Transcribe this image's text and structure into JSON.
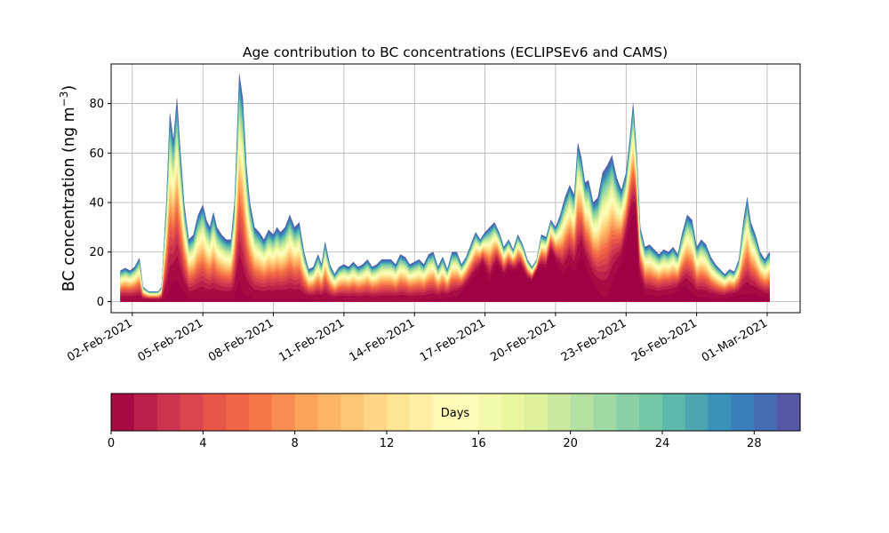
{
  "chart_data": {
    "type": "area",
    "stacked": true,
    "title": "Age contribution to BC concentrations (ECLIPSEv6 and CAMS)",
    "ylabel_main": "BC concentration (ng m",
    "ylabel_sup": "−3",
    "ylabel_close": ")",
    "xlabel": "",
    "xlim": [
      -0.9,
      28.4
    ],
    "ylim": [
      -4.5,
      96
    ],
    "grid": true,
    "x_tick_positions": [
      0,
      3,
      6,
      9,
      12,
      15,
      18,
      21,
      24,
      27
    ],
    "x_tick_labels": [
      "02-Feb-2021",
      "05-Feb-2021",
      "08-Feb-2021",
      "11-Feb-2021",
      "14-Feb-2021",
      "17-Feb-2021",
      "20-Feb-2021",
      "23-Feb-2021",
      "26-Feb-2021",
      "01-Mar-2021"
    ],
    "y_ticks": [
      0,
      20,
      40,
      60,
      80
    ],
    "x_unit": "days since 02-Feb-2021",
    "total_series": [
      [
        -0.5,
        12.5
      ],
      [
        -0.3,
        13.5
      ],
      [
        -0.1,
        12.5
      ],
      [
        0.1,
        14
      ],
      [
        0.3,
        17.5
      ],
      [
        0.45,
        6
      ],
      [
        0.7,
        4
      ],
      [
        1.1,
        4
      ],
      [
        1.25,
        6
      ],
      [
        1.45,
        40
      ],
      [
        1.6,
        76
      ],
      [
        1.75,
        65
      ],
      [
        1.9,
        82
      ],
      [
        2.05,
        60
      ],
      [
        2.2,
        40
      ],
      [
        2.4,
        25
      ],
      [
        2.6,
        27
      ],
      [
        2.8,
        35
      ],
      [
        3.0,
        39
      ],
      [
        3.15,
        33
      ],
      [
        3.3,
        30
      ],
      [
        3.45,
        36
      ],
      [
        3.6,
        30
      ],
      [
        3.8,
        27
      ],
      [
        4.0,
        25
      ],
      [
        4.2,
        25
      ],
      [
        4.35,
        40
      ],
      [
        4.45,
        65
      ],
      [
        4.55,
        92
      ],
      [
        4.7,
        82
      ],
      [
        4.85,
        55
      ],
      [
        5.0,
        40
      ],
      [
        5.2,
        30
      ],
      [
        5.4,
        28
      ],
      [
        5.6,
        25
      ],
      [
        5.8,
        29
      ],
      [
        6.0,
        27
      ],
      [
        6.15,
        30
      ],
      [
        6.3,
        28
      ],
      [
        6.5,
        30
      ],
      [
        6.7,
        35
      ],
      [
        6.9,
        30
      ],
      [
        7.1,
        32
      ],
      [
        7.3,
        20
      ],
      [
        7.5,
        13
      ],
      [
        7.7,
        14
      ],
      [
        7.9,
        19
      ],
      [
        8.05,
        15
      ],
      [
        8.2,
        24
      ],
      [
        8.4,
        15
      ],
      [
        8.6,
        11
      ],
      [
        8.8,
        14
      ],
      [
        9.0,
        15
      ],
      [
        9.2,
        14
      ],
      [
        9.4,
        16
      ],
      [
        9.6,
        14
      ],
      [
        9.8,
        15
      ],
      [
        10.0,
        17
      ],
      [
        10.2,
        14
      ],
      [
        10.4,
        15
      ],
      [
        10.6,
        17
      ],
      [
        10.8,
        17
      ],
      [
        11.0,
        17
      ],
      [
        11.2,
        15
      ],
      [
        11.4,
        19
      ],
      [
        11.6,
        18
      ],
      [
        11.8,
        15
      ],
      [
        12.0,
        16
      ],
      [
        12.2,
        17
      ],
      [
        12.4,
        15
      ],
      [
        12.6,
        19
      ],
      [
        12.8,
        20
      ],
      [
        13.0,
        14
      ],
      [
        13.2,
        18
      ],
      [
        13.4,
        13
      ],
      [
        13.6,
        20
      ],
      [
        13.8,
        20
      ],
      [
        14.0,
        15
      ],
      [
        14.2,
        18
      ],
      [
        14.4,
        23
      ],
      [
        14.6,
        28
      ],
      [
        14.8,
        25
      ],
      [
        15.0,
        28
      ],
      [
        15.2,
        30
      ],
      [
        15.4,
        32
      ],
      [
        15.6,
        28
      ],
      [
        15.8,
        22
      ],
      [
        16.0,
        25
      ],
      [
        16.2,
        21
      ],
      [
        16.4,
        27
      ],
      [
        16.6,
        23
      ],
      [
        16.8,
        17
      ],
      [
        17.0,
        14
      ],
      [
        17.2,
        17
      ],
      [
        17.4,
        27
      ],
      [
        17.6,
        26
      ],
      [
        17.8,
        33
      ],
      [
        18.0,
        30
      ],
      [
        18.2,
        35
      ],
      [
        18.4,
        42
      ],
      [
        18.6,
        47
      ],
      [
        18.8,
        43
      ],
      [
        18.95,
        64
      ],
      [
        19.1,
        58
      ],
      [
        19.25,
        48
      ],
      [
        19.4,
        49
      ],
      [
        19.6,
        40
      ],
      [
        19.8,
        42
      ],
      [
        20.0,
        52
      ],
      [
        20.2,
        55
      ],
      [
        20.4,
        59
      ],
      [
        20.6,
        50
      ],
      [
        20.8,
        45
      ],
      [
        21.0,
        52
      ],
      [
        21.15,
        65
      ],
      [
        21.3,
        80
      ],
      [
        21.45,
        60
      ],
      [
        21.6,
        30
      ],
      [
        21.8,
        22
      ],
      [
        22.0,
        23
      ],
      [
        22.2,
        21
      ],
      [
        22.4,
        19
      ],
      [
        22.6,
        21
      ],
      [
        22.8,
        20
      ],
      [
        23.0,
        22
      ],
      [
        23.2,
        19
      ],
      [
        23.4,
        28
      ],
      [
        23.6,
        35
      ],
      [
        23.8,
        33
      ],
      [
        24.0,
        22
      ],
      [
        24.2,
        25
      ],
      [
        24.4,
        23
      ],
      [
        24.6,
        18
      ],
      [
        24.8,
        15
      ],
      [
        25.0,
        13
      ],
      [
        25.2,
        11
      ],
      [
        25.4,
        13
      ],
      [
        25.6,
        12
      ],
      [
        25.8,
        17
      ],
      [
        26.0,
        33
      ],
      [
        26.15,
        42
      ],
      [
        26.3,
        32
      ],
      [
        26.5,
        27
      ],
      [
        26.7,
        20
      ],
      [
        26.9,
        17
      ],
      [
        27.1,
        20
      ]
    ],
    "fresh_component_series": [
      [
        -0.5,
        0.5
      ],
      [
        0.5,
        0.5
      ],
      [
        1.3,
        0.5
      ],
      [
        1.5,
        3
      ],
      [
        1.75,
        8
      ],
      [
        1.9,
        9
      ],
      [
        2.1,
        5
      ],
      [
        2.4,
        1
      ],
      [
        3.0,
        1
      ],
      [
        4.3,
        1
      ],
      [
        4.55,
        8
      ],
      [
        4.75,
        3
      ],
      [
        5.2,
        1
      ],
      [
        6.5,
        1
      ],
      [
        7.0,
        1
      ],
      [
        8.5,
        0.5
      ],
      [
        10.0,
        0.2
      ],
      [
        12.0,
        0.2
      ],
      [
        13.0,
        1
      ],
      [
        13.8,
        2
      ],
      [
        14.3,
        7
      ],
      [
        14.7,
        12
      ],
      [
        14.9,
        15
      ],
      [
        15.2,
        8
      ],
      [
        15.5,
        15
      ],
      [
        15.8,
        10
      ],
      [
        16.0,
        13
      ],
      [
        16.3,
        12
      ],
      [
        16.5,
        14
      ],
      [
        16.8,
        9
      ],
      [
        17.0,
        8
      ],
      [
        17.3,
        14
      ],
      [
        17.6,
        13
      ],
      [
        17.8,
        20
      ],
      [
        18.0,
        16
      ],
      [
        18.3,
        11
      ],
      [
        18.6,
        15
      ],
      [
        18.8,
        12
      ],
      [
        19.1,
        20
      ],
      [
        19.4,
        11
      ],
      [
        19.7,
        6
      ],
      [
        20.0,
        2
      ],
      [
        20.2,
        2
      ],
      [
        20.5,
        10
      ],
      [
        20.8,
        16
      ],
      [
        21.0,
        24
      ],
      [
        21.2,
        33
      ],
      [
        21.4,
        36
      ],
      [
        21.55,
        10
      ],
      [
        21.8,
        3
      ],
      [
        22.3,
        2
      ],
      [
        23.0,
        3
      ],
      [
        23.5,
        6
      ],
      [
        24.0,
        2
      ],
      [
        25.0,
        1
      ],
      [
        26.0,
        3
      ],
      [
        26.4,
        3
      ],
      [
        27.1,
        1
      ]
    ],
    "colorbar": {
      "label": "Days",
      "range": [
        0,
        30
      ],
      "levels": 30,
      "ticks": [
        0,
        4,
        8,
        12,
        16,
        20,
        24,
        28
      ],
      "colors": [
        "#9e0142",
        "#d53e4f",
        "#f46d43",
        "#fdae61",
        "#fee08b",
        "#ffffbf",
        "#e6f598",
        "#abdda4",
        "#66c2a5",
        "#3288bd",
        "#5e4fa2"
      ]
    }
  }
}
